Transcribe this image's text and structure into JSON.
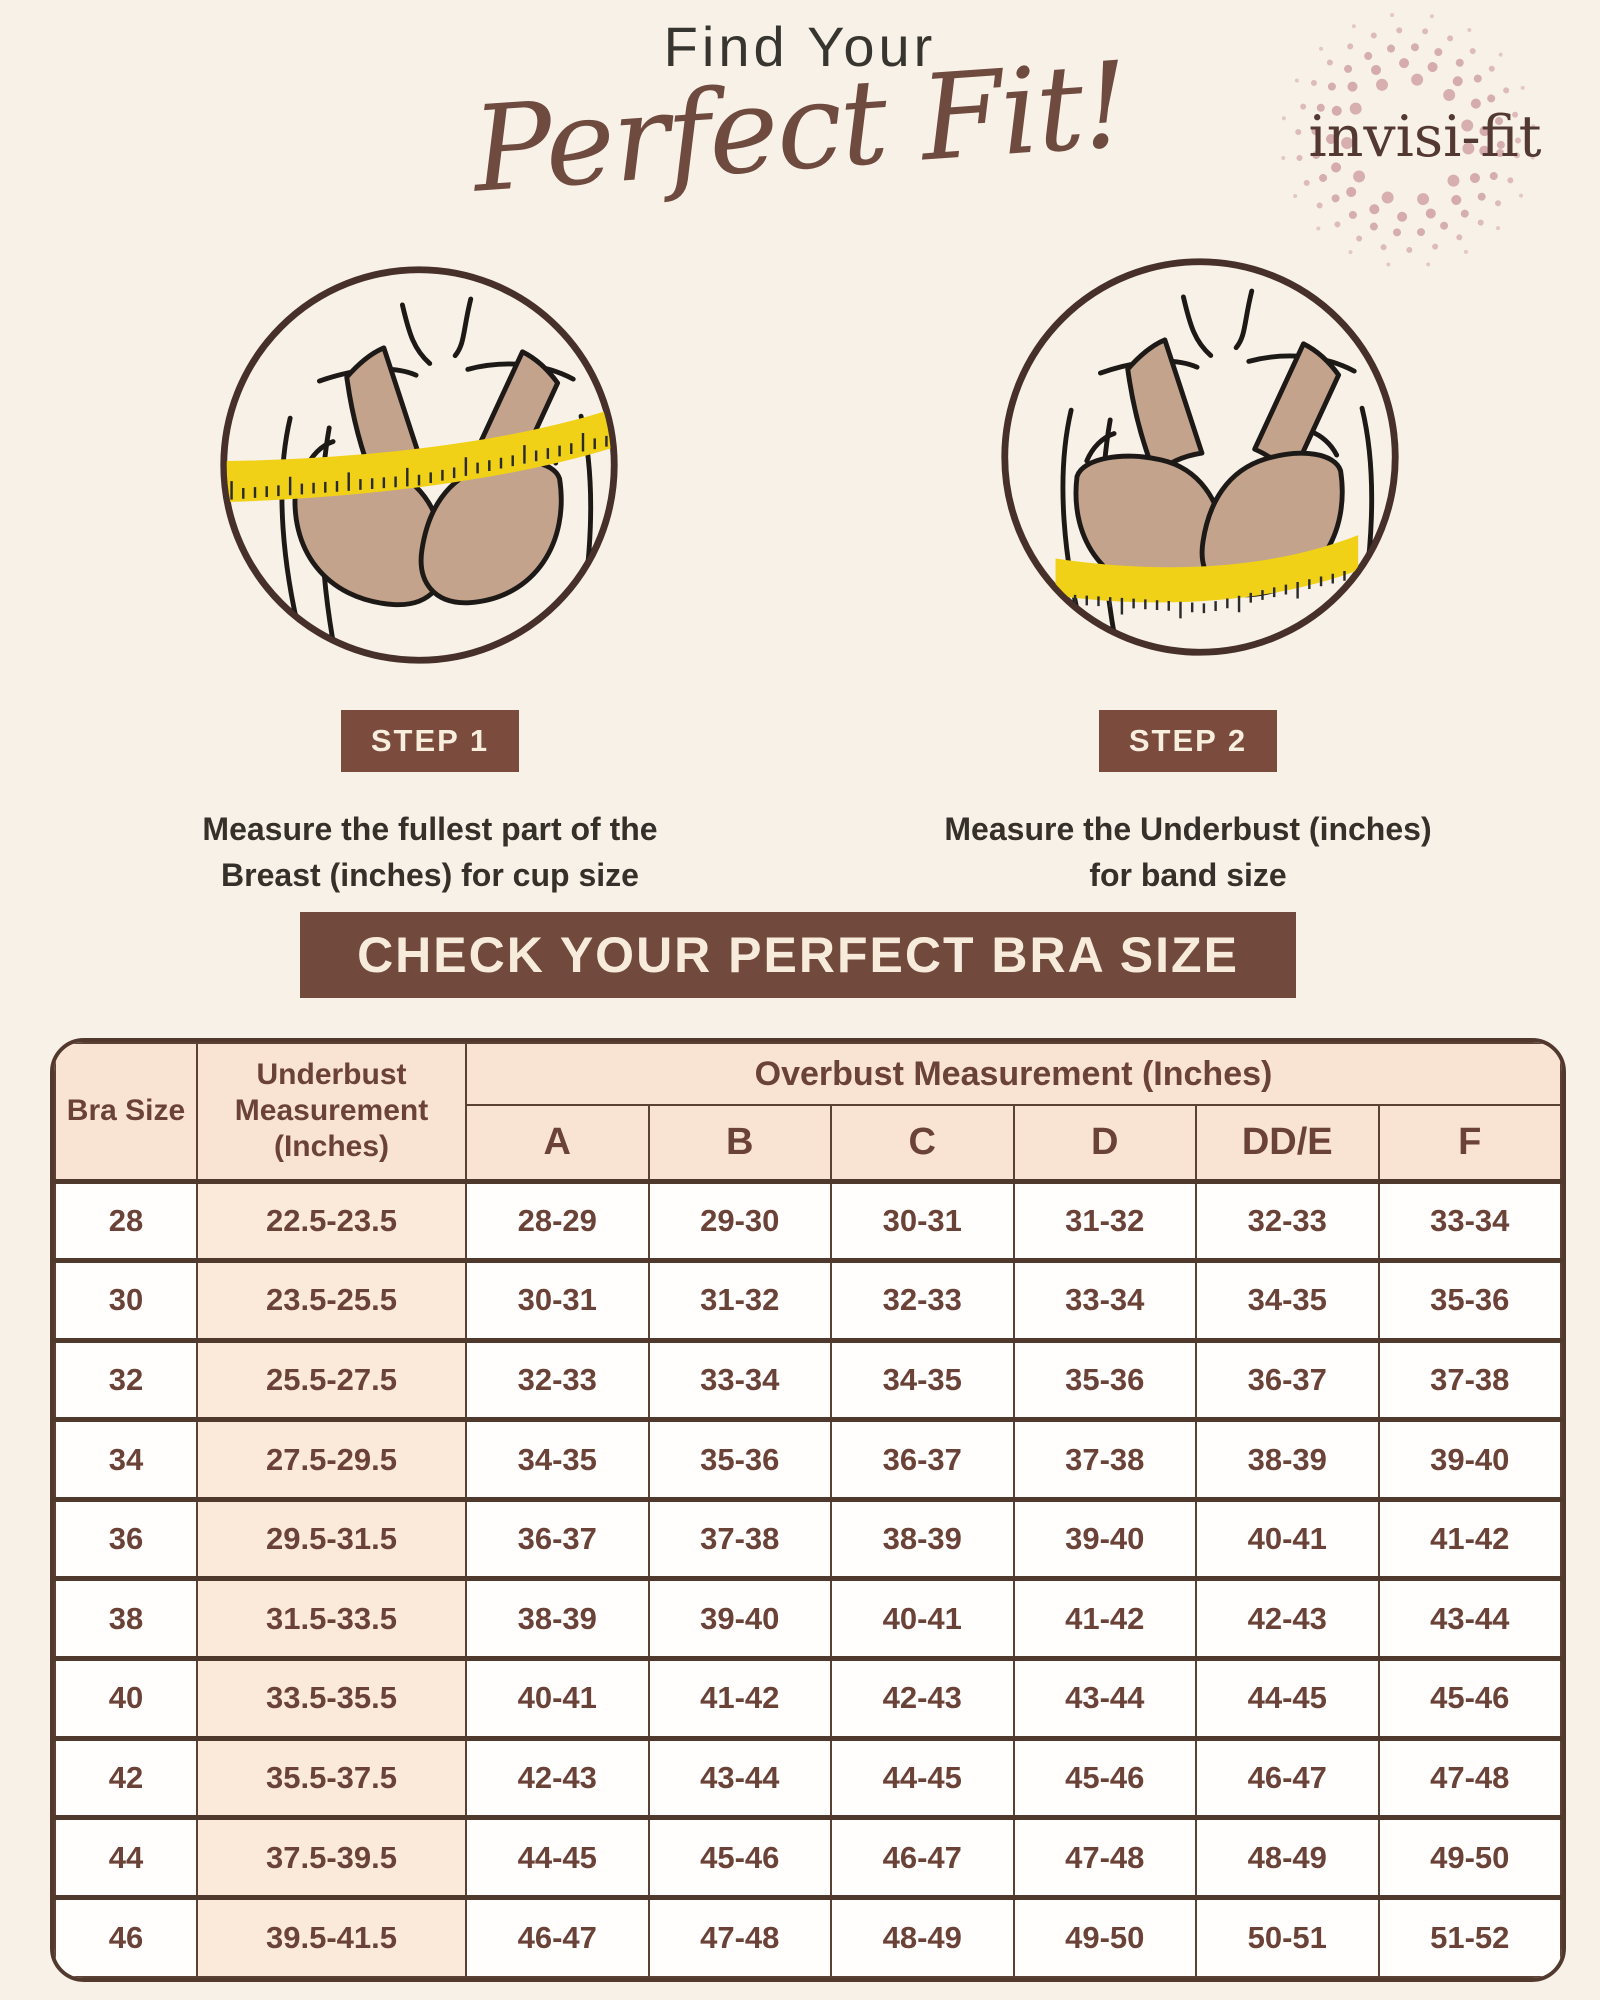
{
  "header": {
    "eyebrow": "Find Your",
    "title": "Perfect Fit!"
  },
  "brand": {
    "name": "invisi-fit",
    "icon": "dotted-swirl-logo"
  },
  "steps": [
    {
      "badge": "STEP 1",
      "description_line1": "Measure the fullest part of the",
      "description_line2": "Breast (inches) for cup size",
      "icon": "measuring-tape-over-bust-illustration"
    },
    {
      "badge": "STEP 2",
      "description_line1": "Measure the Underbust (inches)",
      "description_line2": "for band size",
      "icon": "measuring-tape-under-bust-illustration"
    }
  ],
  "banner": {
    "label": "CHECK YOUR PERFECT BRA SIZE"
  },
  "size_chart": {
    "col_bra_size": "Bra Size",
    "col_underbust": "Underbust Measurement (Inches)",
    "col_overbust_group": "Overbust Measurement (Inches)",
    "cup_labels": [
      "A",
      "B",
      "C",
      "D",
      "DD/E",
      "F"
    ],
    "rows": [
      {
        "size": "28",
        "underbust": "22.5-23.5",
        "cups": [
          "28-29",
          "29-30",
          "30-31",
          "31-32",
          "32-33",
          "33-34"
        ]
      },
      {
        "size": "30",
        "underbust": "23.5-25.5",
        "cups": [
          "30-31",
          "31-32",
          "32-33",
          "33-34",
          "34-35",
          "35-36"
        ]
      },
      {
        "size": "32",
        "underbust": "25.5-27.5",
        "cups": [
          "32-33",
          "33-34",
          "34-35",
          "35-36",
          "36-37",
          "37-38"
        ]
      },
      {
        "size": "34",
        "underbust": "27.5-29.5",
        "cups": [
          "34-35",
          "35-36",
          "36-37",
          "37-38",
          "38-39",
          "39-40"
        ]
      },
      {
        "size": "36",
        "underbust": "29.5-31.5",
        "cups": [
          "36-37",
          "37-38",
          "38-39",
          "39-40",
          "40-41",
          "41-42"
        ]
      },
      {
        "size": "38",
        "underbust": "31.5-33.5",
        "cups": [
          "38-39",
          "39-40",
          "40-41",
          "41-42",
          "42-43",
          "43-44"
        ]
      },
      {
        "size": "40",
        "underbust": "33.5-35.5",
        "cups": [
          "40-41",
          "41-42",
          "42-43",
          "43-44",
          "44-45",
          "45-46"
        ]
      },
      {
        "size": "42",
        "underbust": "35.5-37.5",
        "cups": [
          "42-43",
          "43-44",
          "44-45",
          "45-46",
          "46-47",
          "47-48"
        ]
      },
      {
        "size": "44",
        "underbust": "37.5-39.5",
        "cups": [
          "44-45",
          "45-46",
          "46-47",
          "47-48",
          "48-49",
          "49-50"
        ]
      },
      {
        "size": "46",
        "underbust": "39.5-41.5",
        "cups": [
          "46-47",
          "47-48",
          "48-49",
          "49-50",
          "50-51",
          "51-52"
        ]
      }
    ]
  },
  "colors": {
    "page_bg": "#f8f1e8",
    "banner_brown": "#714a3d",
    "badge_brown": "#7b4b3e",
    "header_peach": "#f9e3d2",
    "underbust_peach": "#fbe9d9",
    "table_text_brown": "#6b4237",
    "table_line_brown": "#5a4133",
    "script_brown": "#6f4a3f",
    "brand_brown": "#533931",
    "dots_pink": "#c9979b",
    "tape_yellow": "#f1d117",
    "bra_tan": "#c3a38c"
  }
}
